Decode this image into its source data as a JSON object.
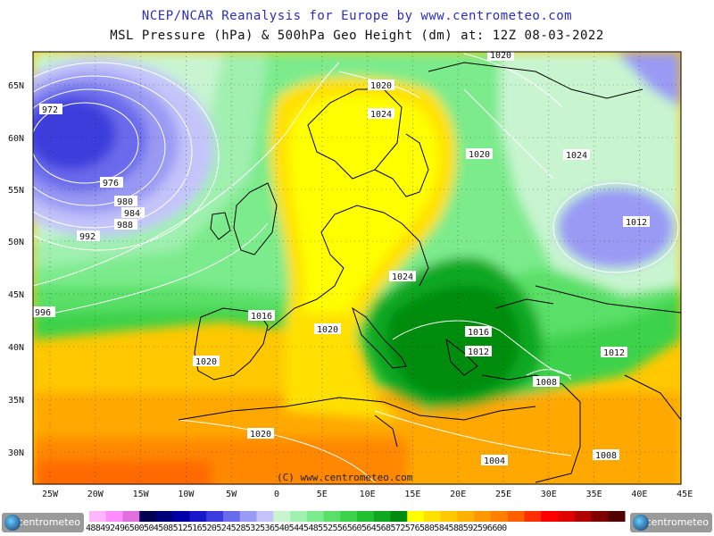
{
  "title": "NCEP/NCAR Reanalysis for Europe by www.centrometeo.com",
  "subtitle": "MSL Pressure (hPa) & 500hPa Geo Height (dm) at: 12Z 08-03-2022",
  "copyright": "(C) www.centrometeo.com",
  "logo_text": "centrometeo",
  "lat_labels": [
    "65N",
    "60N",
    "55N",
    "50N",
    "45N",
    "40N",
    "35N",
    "30N"
  ],
  "lon_labels": [
    "25W",
    "20W",
    "15W",
    "10W",
    "5W",
    "0",
    "5E",
    "10E",
    "15E",
    "20E",
    "25E",
    "30E",
    "35E",
    "40E",
    "45E"
  ],
  "isobar_labels": [
    "972",
    "976",
    "980",
    "984",
    "988",
    "992",
    "996",
    "1020",
    "1024",
    "1020",
    "1024",
    "1012",
    "1024",
    "1016",
    "1020",
    "1020",
    "1016",
    "1012",
    "1012",
    "1008",
    "1020",
    "1004",
    "1008",
    "1020"
  ],
  "colorbar_values": "488492496500504508512516520524528532536540544548552556560564568572576580584588592596600",
  "colorbar_colors": [
    "#ffb6ff",
    "#ff8cff",
    "#e070e0",
    "#000050",
    "#00007a",
    "#0000a8",
    "#1818c8",
    "#3c3cdc",
    "#6a6aec",
    "#9a9af4",
    "#c4c4fa",
    "#c8f5d0",
    "#a0f0b0",
    "#7ceb8c",
    "#5ae068",
    "#3cd24c",
    "#20c030",
    "#10a820",
    "#008c10",
    "#ffff00",
    "#ffe000",
    "#ffc800",
    "#ffb000",
    "#ff9800",
    "#ff8000",
    "#ff6000",
    "#ff3000",
    "#ff0000",
    "#e00000",
    "#b00000",
    "#800000",
    "#500000"
  ],
  "colors": {
    "title": "#2d2db8",
    "low": "#3030c8",
    "high": "#ffe000",
    "border": "#000000",
    "isobar": "#ffffff"
  },
  "icons": [
    "centrometeo-logo-left",
    "centrometeo-logo-right"
  ]
}
